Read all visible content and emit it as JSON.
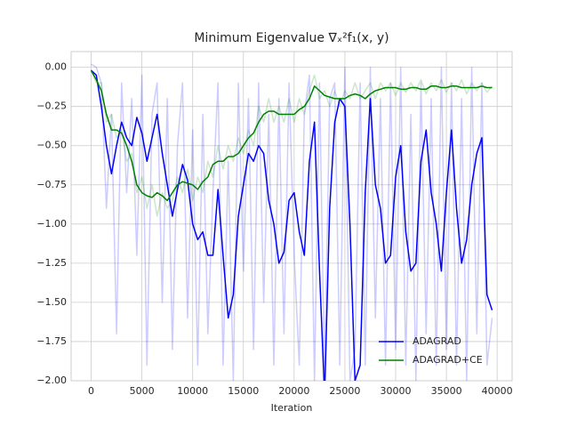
{
  "chart_data": {
    "type": "line",
    "title": "Minimum Eigenvalue ∇ₓ²f₁(x, y)",
    "x_label": "Iteration",
    "x": [
      0,
      500,
      1000,
      1500,
      2000,
      2500,
      3000,
      3500,
      4000,
      4500,
      5000,
      5500,
      6000,
      6500,
      7000,
      7500,
      8000,
      8500,
      9000,
      9500,
      10000,
      10500,
      11000,
      11500,
      12000,
      12500,
      13000,
      13500,
      14000,
      14500,
      15000,
      15500,
      16000,
      16500,
      17000,
      17500,
      18000,
      18500,
      19000,
      19500,
      20000,
      20500,
      21000,
      21500,
      22000,
      22500,
      23000,
      23500,
      24000,
      24500,
      25000,
      25500,
      26000,
      26500,
      27000,
      27500,
      28000,
      28500,
      29000,
      29500,
      30000,
      30500,
      31000,
      31500,
      32000,
      32500,
      33000,
      33500,
      34000,
      34500,
      35000,
      35500,
      36000,
      36500,
      37000,
      37500,
      38000,
      38500,
      39000,
      39500
    ],
    "series": [
      {
        "color": "rgba(0,0,255,0.2)",
        "values": [
          0.02,
          0.0,
          -0.1,
          -0.9,
          -0.3,
          -1.7,
          -0.1,
          -0.8,
          -0.2,
          -1.2,
          -0.05,
          -1.9,
          -0.3,
          -0.1,
          -1.5,
          -0.2,
          -1.8,
          -0.5,
          -0.1,
          -1.6,
          -0.4,
          -1.9,
          -0.3,
          -1.7,
          -0.8,
          -0.1,
          -1.9,
          -0.6,
          -2.0,
          -0.1,
          -1.3,
          -0.2,
          -1.8,
          -0.1,
          -1.5,
          -0.3,
          -1.9,
          -0.2,
          -1.7,
          -0.1,
          -1.2,
          -1.9,
          -0.3,
          -0.05,
          -2.0,
          -0.1,
          -2.0,
          -0.2,
          -0.1,
          -1.9,
          0.0,
          -2.0,
          -1.8,
          -0.1,
          -1.9,
          0.0,
          -1.6,
          -0.2,
          -1.9,
          -0.1,
          -1.8,
          0.0,
          -1.9,
          -0.3,
          -2.0,
          -0.1,
          -1.7,
          -0.2,
          -1.9,
          0.0,
          -1.8,
          -0.1,
          -1.9,
          -0.2,
          -2.0,
          0.0,
          -1.7,
          -0.1,
          -1.9,
          -1.6
        ]
      },
      {
        "color": "rgba(0,128,0,0.2)",
        "values": [
          -0.02,
          -0.1,
          -0.1,
          -0.35,
          -0.3,
          -0.45,
          -0.4,
          -0.6,
          -0.55,
          -0.8,
          -0.7,
          -0.9,
          -0.75,
          -0.95,
          -0.8,
          -0.9,
          -0.85,
          -0.7,
          -0.8,
          -0.65,
          -0.85,
          -0.7,
          -0.8,
          -0.6,
          -0.7,
          -0.5,
          -0.65,
          -0.5,
          -0.6,
          -0.45,
          -0.55,
          -0.4,
          -0.5,
          -0.25,
          -0.35,
          -0.2,
          -0.35,
          -0.25,
          -0.35,
          -0.2,
          -0.35,
          -0.2,
          -0.3,
          -0.15,
          -0.05,
          -0.2,
          -0.15,
          -0.25,
          -0.15,
          -0.25,
          -0.15,
          -0.2,
          -0.1,
          -0.2,
          -0.15,
          -0.1,
          -0.2,
          -0.1,
          -0.15,
          -0.1,
          -0.18,
          -0.1,
          -0.16,
          -0.1,
          -0.15,
          -0.08,
          -0.17,
          -0.1,
          -0.15,
          -0.08,
          -0.16,
          -0.1,
          -0.15,
          -0.08,
          -0.17,
          -0.1,
          -0.15,
          -0.1,
          -0.16,
          -0.12
        ]
      },
      {
        "name": "ADAGRAD",
        "color": "#0000ff",
        "values": [
          -0.02,
          -0.05,
          -0.25,
          -0.5,
          -0.68,
          -0.5,
          -0.35,
          -0.45,
          -0.5,
          -0.32,
          -0.42,
          -0.6,
          -0.45,
          -0.3,
          -0.55,
          -0.75,
          -0.95,
          -0.78,
          -0.62,
          -0.72,
          -1.0,
          -1.1,
          -1.05,
          -1.2,
          -1.2,
          -0.78,
          -1.2,
          -1.6,
          -1.45,
          -0.95,
          -0.75,
          -0.55,
          -0.6,
          -0.5,
          -0.55,
          -0.85,
          -1.0,
          -1.25,
          -1.18,
          -0.85,
          -0.8,
          -1.05,
          -1.2,
          -0.6,
          -0.35,
          -1.3,
          -2.1,
          -0.9,
          -0.35,
          -0.2,
          -0.25,
          -1.0,
          -2.0,
          -1.9,
          -0.8,
          -0.2,
          -0.75,
          -0.9,
          -1.25,
          -1.2,
          -0.7,
          -0.5,
          -1.05,
          -1.3,
          -1.25,
          -0.6,
          -0.4,
          -0.8,
          -1.0,
          -1.3,
          -0.8,
          -0.4,
          -0.9,
          -1.25,
          -1.1,
          -0.75,
          -0.55,
          -0.45,
          -1.45,
          -1.55
        ]
      },
      {
        "name": "ADAGRAD+CE",
        "color": "#008000",
        "values": [
          -0.02,
          -0.08,
          -0.15,
          -0.3,
          -0.4,
          -0.4,
          -0.42,
          -0.5,
          -0.6,
          -0.75,
          -0.8,
          -0.82,
          -0.83,
          -0.8,
          -0.82,
          -0.85,
          -0.8,
          -0.75,
          -0.73,
          -0.74,
          -0.75,
          -0.78,
          -0.73,
          -0.7,
          -0.62,
          -0.6,
          -0.6,
          -0.57,
          -0.57,
          -0.55,
          -0.5,
          -0.45,
          -0.42,
          -0.35,
          -0.3,
          -0.28,
          -0.28,
          -0.3,
          -0.3,
          -0.3,
          -0.3,
          -0.27,
          -0.25,
          -0.2,
          -0.12,
          -0.15,
          -0.18,
          -0.19,
          -0.2,
          -0.2,
          -0.2,
          -0.18,
          -0.17,
          -0.18,
          -0.2,
          -0.17,
          -0.15,
          -0.14,
          -0.13,
          -0.13,
          -0.13,
          -0.14,
          -0.14,
          -0.13,
          -0.13,
          -0.14,
          -0.14,
          -0.12,
          -0.12,
          -0.13,
          -0.13,
          -0.12,
          -0.12,
          -0.13,
          -0.13,
          -0.13,
          -0.13,
          -0.12,
          -0.13,
          -0.13
        ]
      }
    ],
    "xlim": [
      -1975,
      41475
    ],
    "ylim": [
      -2,
      0.1
    ],
    "xticks": [
      0,
      5000,
      10000,
      15000,
      20000,
      25000,
      30000,
      35000,
      40000
    ],
    "yticks": [
      {
        "value": 0,
        "label": "0.00"
      },
      {
        "value": -0.25,
        "label": "−0.25"
      },
      {
        "value": -0.5,
        "label": "−0.50"
      },
      {
        "value": -0.75,
        "label": "−0.75"
      },
      {
        "value": -1,
        "label": "−1.00"
      },
      {
        "value": -1.25,
        "label": "−1.25"
      },
      {
        "value": -1.5,
        "label": "−1.50"
      },
      {
        "value": -1.75,
        "label": "−1.75"
      },
      {
        "value": -2,
        "label": "−2.00"
      }
    ],
    "grid": true,
    "legend": "lower right"
  }
}
